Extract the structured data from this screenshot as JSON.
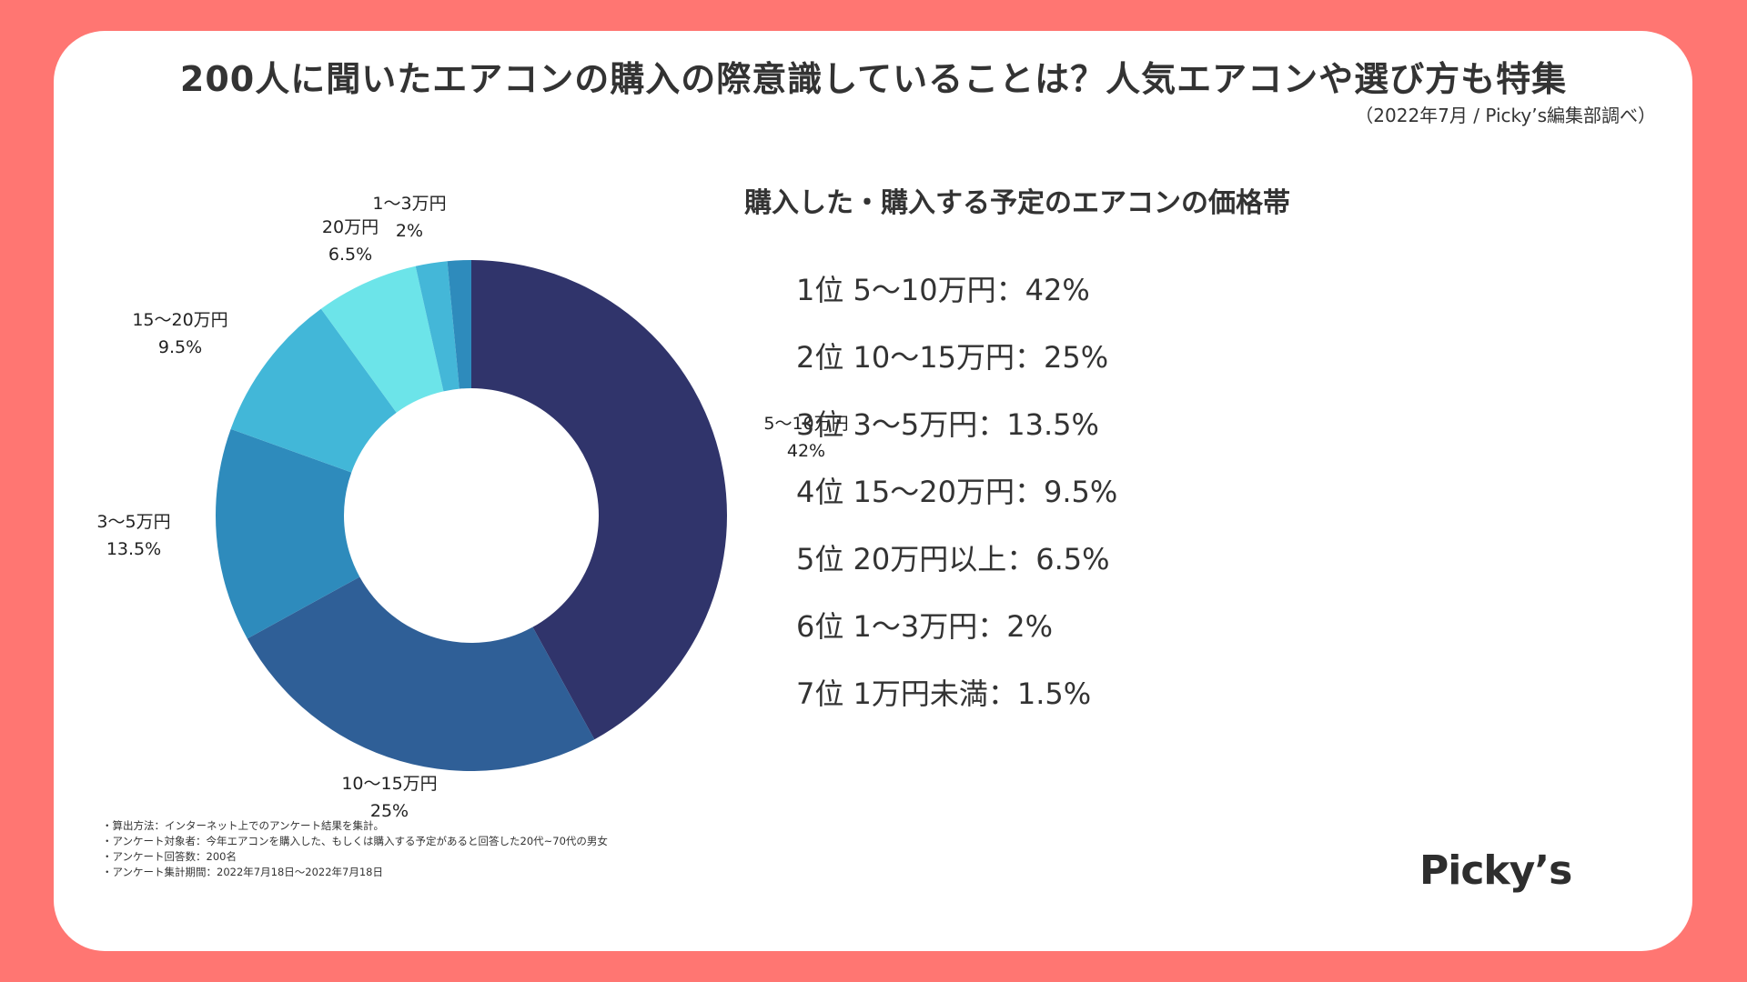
{
  "title": "200人に聞いたエアコンの購入の際意識していることは？人気エアコンや選び方も特集",
  "source": "（2022年7月 / Picky’s編集部調べ）",
  "chart_data": {
    "type": "pie",
    "donut": true,
    "categories": [
      "5〜10万円",
      "10〜15万円",
      "3〜5万円",
      "15〜20万円",
      "20万円",
      "1〜3万円",
      ""
    ],
    "value_labels": [
      "42%",
      "25%",
      "13.5%",
      "9.5%",
      "6.5%",
      "2%",
      ""
    ],
    "values": [
      42,
      25,
      13.5,
      9.5,
      6.5,
      2,
      1.5
    ],
    "colors": [
      "#30346b",
      "#2f5f97",
      "#2e8bbc",
      "#42b7d8",
      "#6ce4e9",
      "#44b7d8",
      "#2e8bbc"
    ]
  },
  "ranking": {
    "title": "購入した・購入する予定のエアコンの価格帯",
    "items": [
      "1位 5〜10万円：42%",
      "2位 10〜15万円：25%",
      "3位 3〜5万円：13.5%",
      "4位 15〜20万円：9.5%",
      "5位 20万円以上：6.5%",
      "6位 1〜3万円：2%",
      "7位 1万円未満：1.5%"
    ]
  },
  "notes": [
    "・算出方法：インターネット上でのアンケート結果を集計。",
    "・アンケート対象者：今年エアコンを購入した、もしくは購入する予定があると回答した20代~70代の男女",
    "・アンケート回答数：200名",
    "・アンケート集計期間：2022年7月18日〜2022年7月18日"
  ],
  "logo": "Picky’s",
  "colors": {
    "background": "#ff7672",
    "card": "#ffffff",
    "text": "#333333"
  }
}
